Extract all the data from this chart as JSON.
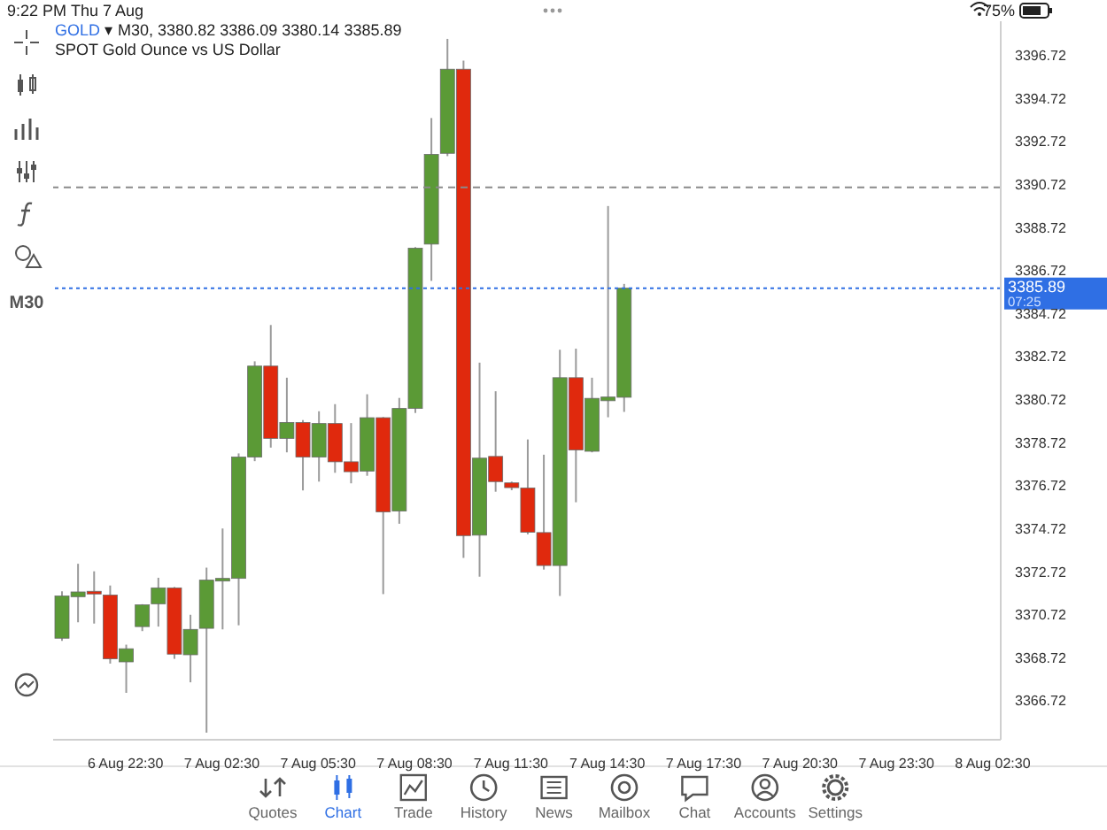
{
  "chart_data": {
    "type": "candlestick",
    "title": "GOLD ▾ M30, 3380.82 3386.09 3380.14 3385.89",
    "subtitle": "SPOT Gold Ounce vs US Dollar",
    "categories": [
      null,
      null,
      null,
      null,
      "6 Aug 22:30",
      null,
      null,
      null,
      null,
      null,
      "7 Aug 02:30",
      null,
      null,
      null,
      null,
      null,
      "7 Aug 05:30",
      null,
      null,
      null,
      null,
      null,
      "7 Aug 08:30",
      null,
      null,
      null,
      null,
      null,
      "7 Aug 11:30",
      null,
      null,
      null,
      null,
      null,
      "7 Aug 14:30",
      null,
      null,
      null,
      null,
      null,
      "7 Aug 17:30",
      null,
      null,
      null,
      null,
      null,
      "7 Aug 20:30",
      null,
      null,
      null,
      null,
      null,
      "7 Aug 23:30",
      null,
      null,
      null,
      null,
      null,
      "8 Aug 02:30"
    ],
    "ohlc": [
      [
        3369.62,
        3371.8,
        3369.5,
        3371.58
      ],
      [
        3371.55,
        3373.08,
        3370.36,
        3371.77
      ],
      [
        3371.8,
        3372.73,
        3370.3,
        3371.72
      ],
      [
        3371.63,
        3372.07,
        3368.44,
        3368.66
      ],
      [
        3368.52,
        3369.32,
        3367.08,
        3369.13
      ],
      [
        3370.16,
        3371.2,
        3369.95,
        3371.17
      ],
      [
        3371.22,
        3372.43,
        3370.16,
        3371.96
      ],
      [
        3371.96,
        3372.0,
        3368.66,
        3368.88
      ],
      [
        3368.85,
        3370.71,
        3367.57,
        3370.03
      ],
      [
        3370.08,
        3372.9,
        3365.23,
        3372.32
      ],
      [
        3372.37,
        3374.72,
        3370.03,
        3372.4
      ],
      [
        3372.4,
        3378.21,
        3370.22,
        3378.04
      ],
      [
        3378.04,
        3382.49,
        3377.85,
        3382.27
      ],
      [
        3382.27,
        3384.18,
        3378.48,
        3378.91
      ],
      [
        3378.91,
        3381.73,
        3378.26,
        3379.65
      ],
      [
        3379.65,
        3379.76,
        3376.49,
        3378.04
      ],
      [
        3378.04,
        3380.17,
        3376.9,
        3379.6
      ],
      [
        3379.6,
        3380.5,
        3377.31,
        3377.82
      ],
      [
        3377.82,
        3379.62,
        3376.82,
        3377.36
      ],
      [
        3377.39,
        3380.96,
        3377.17,
        3379.87
      ],
      [
        3379.87,
        3379.9,
        3371.67,
        3375.49
      ],
      [
        3375.53,
        3380.79,
        3374.94,
        3380.3
      ],
      [
        3380.3,
        3387.8,
        3380.09,
        3387.75
      ],
      [
        3387.94,
        3393.8,
        3386.23,
        3392.11
      ],
      [
        3392.16,
        3397.48,
        3392.03,
        3396.07
      ],
      [
        3396.07,
        3396.47,
        3373.35,
        3374.39
      ],
      [
        3374.41,
        3382.43,
        3372.48,
        3377.99
      ],
      [
        3378.07,
        3381.1,
        3376.43,
        3376.9
      ],
      [
        3376.84,
        3376.9,
        3376.5,
        3376.62
      ],
      [
        3376.6,
        3378.86,
        3374.45,
        3374.55
      ],
      [
        3374.53,
        3378.15,
        3372.81,
        3373.0
      ],
      [
        3373.0,
        3383.03,
        3371.58,
        3381.73
      ],
      [
        3381.73,
        3383.08,
        3375.94,
        3378.37
      ],
      [
        3378.31,
        3381.73,
        3378.26,
        3380.77
      ],
      [
        3380.66,
        3389.71,
        3379.89,
        3380.83
      ],
      [
        3380.82,
        3386.09,
        3380.14,
        3385.89
      ],
      null,
      null,
      null,
      null,
      null,
      null,
      null,
      null,
      null,
      null,
      null,
      null,
      null,
      null,
      null,
      null,
      null,
      null,
      null,
      null,
      null,
      null,
      null
    ],
    "colors": [
      "#5b9a36",
      "#5b9a36",
      "#e0290d",
      "#e0290d",
      "#5b9a36",
      "#5b9a36",
      "#5b9a36",
      "#e0290d",
      "#5b9a36",
      "#5b9a36",
      "#5b9a36",
      "#5b9a36",
      "#5b9a36",
      "#e0290d",
      "#5b9a36",
      "#e0290d",
      "#5b9a36",
      "#e0290d",
      "#e0290d",
      "#5b9a36",
      "#e0290d",
      "#5b9a36",
      "#5b9a36",
      "#5b9a36",
      "#5b9a36",
      "#e0290d",
      "#5b9a36",
      "#e0290d",
      "#e0290d",
      "#e0290d",
      "#e0290d",
      "#5b9a36",
      "#e0290d",
      "#5b9a36",
      "#5b9a36",
      "#5b9a36",
      null,
      null,
      null,
      null,
      null,
      null,
      null,
      null,
      null,
      null,
      null,
      null,
      null,
      null,
      null,
      null,
      null,
      null,
      null,
      null,
      null,
      null,
      null
    ],
    "ylim": [
      3364.9,
      3398.3
    ],
    "yticks": [
      3366.72,
      3368.72,
      3370.72,
      3372.72,
      3374.72,
      3376.72,
      3378.72,
      3380.72,
      3382.72,
      3384.72,
      3386.72,
      3388.72,
      3390.72,
      3392.72,
      3394.72,
      3396.72
    ],
    "ref_lines": [
      {
        "axis": "y",
        "value": 3390.58,
        "color": "#8a8a8a",
        "line_style": "dashed"
      },
      {
        "axis": "y",
        "value": 3385.89,
        "label": "3385.89",
        "color": "#2f6fe4",
        "line_style": "dotted"
      }
    ],
    "annotations": [
      "9:22 PM",
      "Thu 7 Aug",
      "75%",
      "M30",
      "07:25",
      "Quotes",
      "Chart",
      "Trade",
      "History",
      "News",
      "Mailbox",
      "Chat",
      "Accounts",
      "Settings"
    ]
  }
}
